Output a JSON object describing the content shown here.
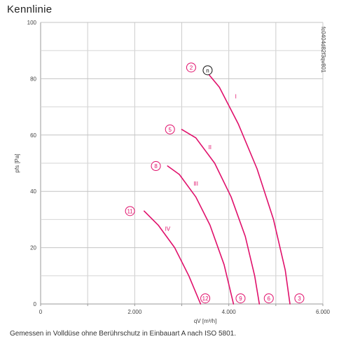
{
  "page": {
    "title": "Kennlinie",
    "footnote": "Gemessen in Volldüse ohne Berührschutz in Einbauart A nach ISO 5801."
  },
  "chart_data": {
    "type": "line",
    "title": "Kennlinie",
    "xlabel": "qV [m³/h]",
    "ylabel": "pfs [Pa]",
    "xlim": [
      0,
      6000
    ],
    "ylim": [
      0,
      100
    ],
    "x_ticks": [
      "0",
      "2.000",
      "4.000",
      "6.000"
    ],
    "y_ticks": [
      "0",
      "20",
      "40",
      "60",
      "80",
      "100"
    ],
    "grid": true,
    "vertical_code": "fc0404d82f3qv801",
    "series_color": "#e0106b",
    "series": [
      {
        "name": "I",
        "x": [
          3500,
          3800,
          4200,
          4600,
          4950,
          5200,
          5300
        ],
        "y": [
          83,
          77,
          64,
          48,
          30,
          12,
          0
        ]
      },
      {
        "name": "II",
        "x": [
          3000,
          3300,
          3700,
          4050,
          4350,
          4550,
          4650
        ],
        "y": [
          62,
          59,
          50,
          38,
          24,
          10,
          0
        ]
      },
      {
        "name": "III",
        "x": [
          2700,
          2950,
          3300,
          3600,
          3900,
          4100
        ],
        "y": [
          49,
          46,
          38,
          28,
          14,
          0
        ]
      },
      {
        "name": "IV",
        "x": [
          2200,
          2500,
          2850,
          3150,
          3400
        ],
        "y": [
          33,
          28,
          20,
          10,
          0
        ]
      }
    ],
    "markers": [
      {
        "label": "2",
        "x": 3200,
        "y": 84,
        "color": "#e0106b"
      },
      {
        "label": "n",
        "x": 3550,
        "y": 83,
        "color": "#111111"
      },
      {
        "label": "5",
        "x": 2750,
        "y": 62,
        "color": "#e0106b"
      },
      {
        "label": "8",
        "x": 2450,
        "y": 49,
        "color": "#e0106b"
      },
      {
        "label": "11",
        "x": 1900,
        "y": 33,
        "color": "#e0106b"
      },
      {
        "label": "12",
        "x": 3500,
        "y": 2,
        "color": "#e0106b"
      },
      {
        "label": "9",
        "x": 4250,
        "y": 2,
        "color": "#e0106b"
      },
      {
        "label": "6",
        "x": 4850,
        "y": 2,
        "color": "#e0106b"
      },
      {
        "label": "3",
        "x": 5500,
        "y": 2,
        "color": "#e0106b"
      }
    ],
    "curve_labels": [
      {
        "label": "I",
        "x": 4150,
        "y": 73
      },
      {
        "label": "II",
        "x": 3600,
        "y": 55
      },
      {
        "label": "III",
        "x": 3300,
        "y": 42
      },
      {
        "label": "IV",
        "x": 2700,
        "y": 26
      }
    ]
  }
}
